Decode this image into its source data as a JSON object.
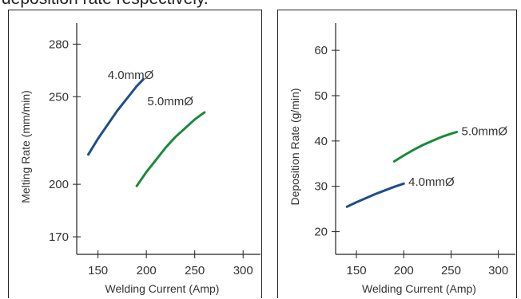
{
  "caption": "deposition rate respectively.",
  "colors": {
    "blue": "#1f4e8c",
    "green": "#1a8a3a",
    "axis": "#222222"
  },
  "chart_data": [
    {
      "type": "line",
      "xlabel": "Welding Current (Amp)",
      "ylabel": "Melting Rate (mm/min)",
      "xlim": [
        128,
        318
      ],
      "ylim": [
        160,
        292
      ],
      "x_ticks": [
        150,
        200,
        250,
        300
      ],
      "y_ticks": [
        170,
        200,
        250,
        280
      ],
      "series": [
        {
          "name": "4.0mmØ",
          "color": "#1f4e8c",
          "x": [
            140,
            150,
            160,
            170,
            180,
            190,
            197
          ],
          "y": [
            217,
            226,
            234,
            242,
            249,
            256,
            260
          ]
        },
        {
          "name": "5.0mmØ",
          "color": "#1a8a3a",
          "x": [
            190,
            200,
            210,
            220,
            230,
            240,
            250,
            260
          ],
          "y": [
            199,
            207,
            214,
            221,
            227,
            232,
            237,
            241
          ]
        }
      ],
      "labels": [
        {
          "text": "4.0mmØ",
          "x": 160,
          "y": 262
        },
        {
          "text": "5.0mmØ",
          "x": 201,
          "y": 247
        }
      ]
    },
    {
      "type": "line",
      "xlabel": "Welding Current (Amp)",
      "ylabel": "Deposition Rate (g/min)",
      "xlim": [
        128,
        318
      ],
      "ylim": [
        15,
        66
      ],
      "x_ticks": [
        150,
        200,
        250,
        300
      ],
      "y_ticks": [
        20,
        30,
        40,
        50,
        60
      ],
      "series": [
        {
          "name": "4.0mmØ",
          "color": "#1f4e8c",
          "x": [
            140,
            150,
            160,
            170,
            180,
            190,
            200
          ],
          "y": [
            25.5,
            26.5,
            27.4,
            28.3,
            29.1,
            29.9,
            30.6
          ]
        },
        {
          "name": "5.0mmØ",
          "color": "#1a8a3a",
          "x": [
            190,
            200,
            210,
            220,
            230,
            240,
            250,
            256
          ],
          "y": [
            35.5,
            36.8,
            38.0,
            39.1,
            40.0,
            40.9,
            41.6,
            42.0
          ]
        }
      ],
      "labels": [
        {
          "text": "4.0mmØ",
          "x": 205,
          "y": 30.8
        },
        {
          "text": "5.0mmØ",
          "x": 261,
          "y": 42.0
        }
      ]
    }
  ]
}
